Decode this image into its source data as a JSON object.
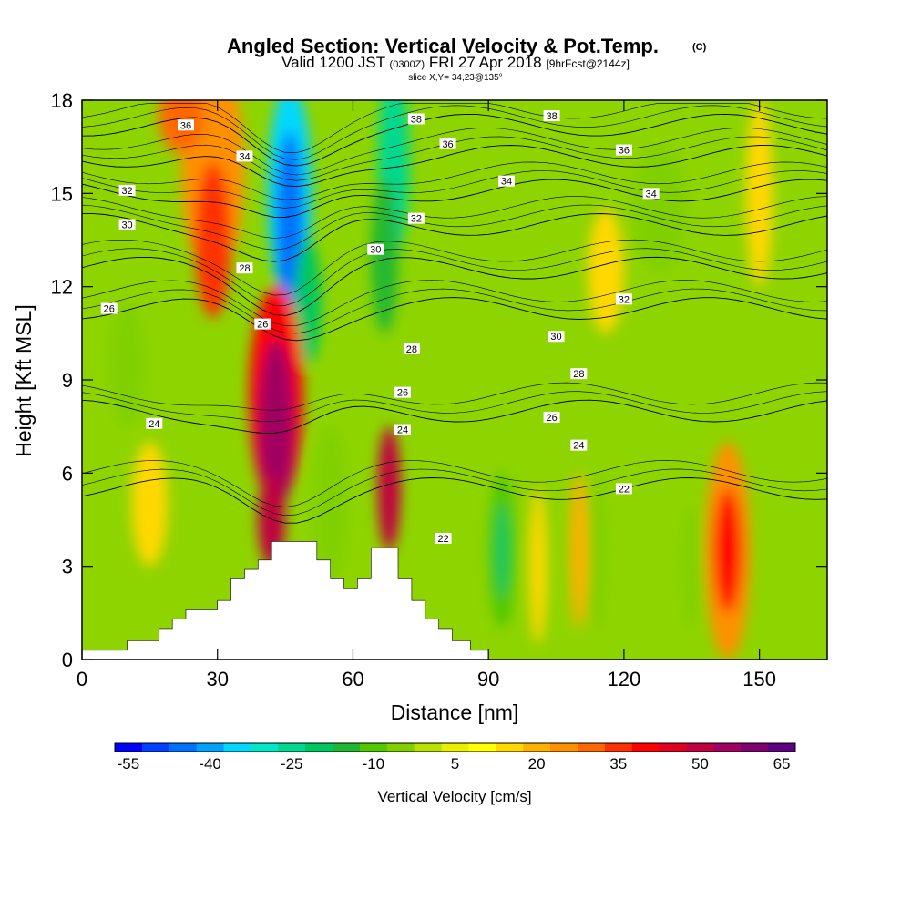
{
  "title": {
    "main": "Angled Section: Vertical Velocity & Pot.Temp.",
    "unit_tag": "(C)",
    "valid_prefix": "Valid 1200 JST",
    "utc": "(0300Z)",
    "date": "FRI 27 Apr 2018",
    "forecast": "[9hrFcst@2144z]",
    "slice": "slice X,Y= 34,23@135°"
  },
  "chart_data": {
    "type": "heatmap",
    "xlabel": "Distance [nm]",
    "ylabel": "Height [Kft MSL]",
    "xlim": [
      0,
      165
    ],
    "ylim": [
      0,
      18
    ],
    "x_ticks": [
      "0",
      "30",
      "60",
      "90",
      "120",
      "150"
    ],
    "x_tick_values": [
      0,
      30,
      60,
      90,
      120,
      150
    ],
    "y_ticks": [
      "0",
      "3",
      "6",
      "9",
      "12",
      "15",
      "18"
    ],
    "y_tick_values": [
      0,
      3,
      6,
      9,
      12,
      15,
      18
    ],
    "background_color": "#8ed400",
    "velocity_features": [
      {
        "x": 29,
        "y": 15.8,
        "rx": 7,
        "ry": 3.5,
        "value": 20
      },
      {
        "x": 29,
        "y": 13.5,
        "rx": 4,
        "ry": 2.5,
        "value": 30
      },
      {
        "x": 22,
        "y": 17.5,
        "rx": 5,
        "ry": 1.2,
        "value": 25
      },
      {
        "x": 46,
        "y": 15,
        "rx": 5,
        "ry": 3.5,
        "value": -40
      },
      {
        "x": 46,
        "y": 14,
        "rx": 3,
        "ry": 3.0,
        "value": -50
      },
      {
        "x": 50,
        "y": 11.5,
        "rx": 3,
        "ry": 2.0,
        "value": -25
      },
      {
        "x": 69,
        "y": 16,
        "rx": 3.5,
        "ry": 3.0,
        "value": -30
      },
      {
        "x": 67,
        "y": 13,
        "rx": 3,
        "ry": 2.5,
        "value": -20
      },
      {
        "x": 43,
        "y": 8.5,
        "rx": 6,
        "ry": 3.5,
        "value": 35
      },
      {
        "x": 43,
        "y": 7.5,
        "rx": 4,
        "ry": 2.8,
        "value": 50
      },
      {
        "x": 42,
        "y": 4.5,
        "rx": 3,
        "ry": 1.5,
        "value": 45
      },
      {
        "x": 68,
        "y": 5.5,
        "rx": 2.5,
        "ry": 2.0,
        "value": 45
      },
      {
        "x": 93,
        "y": 3.5,
        "rx": 3,
        "ry": 2.5,
        "value": -15
      },
      {
        "x": 93,
        "y": 3.5,
        "rx": 1.5,
        "ry": 1.5,
        "value": -25
      },
      {
        "x": 101,
        "y": 3,
        "rx": 2,
        "ry": 2.5,
        "value": 10
      },
      {
        "x": 110,
        "y": 3.5,
        "rx": 2,
        "ry": 2.5,
        "value": 15
      },
      {
        "x": 114,
        "y": 3.5,
        "rx": 2,
        "ry": 2.5,
        "value": -10
      },
      {
        "x": 135,
        "y": 3,
        "rx": 2,
        "ry": 2.0,
        "value": -10
      },
      {
        "x": 143,
        "y": 3.5,
        "rx": 5,
        "ry": 3.5,
        "value": 20
      },
      {
        "x": 143,
        "y": 3.5,
        "rx": 3,
        "ry": 2.0,
        "value": 35
      },
      {
        "x": 128,
        "y": 14.5,
        "rx": 6,
        "ry": 2.0,
        "value": -10
      },
      {
        "x": 116,
        "y": 12.5,
        "rx": 4,
        "ry": 2.0,
        "value": 10
      },
      {
        "x": 150,
        "y": 15,
        "rx": 3,
        "ry": 3.0,
        "value": 10
      },
      {
        "x": 10,
        "y": 9.5,
        "rx": 4,
        "ry": 2.0,
        "value": -10
      },
      {
        "x": 55,
        "y": 5,
        "rx": 4,
        "ry": 2.5,
        "value": -10
      },
      {
        "x": 15,
        "y": 5,
        "rx": 4,
        "ry": 2.0,
        "value": 10
      }
    ],
    "terrain": [
      [
        0,
        0.3
      ],
      [
        10,
        0.3
      ],
      [
        10,
        0.6
      ],
      [
        17,
        0.6
      ],
      [
        17,
        1.0
      ],
      [
        20,
        1.0
      ],
      [
        20,
        1.3
      ],
      [
        23,
        1.3
      ],
      [
        23,
        1.6
      ],
      [
        30,
        1.6
      ],
      [
        30,
        1.9
      ],
      [
        33,
        1.9
      ],
      [
        33,
        2.6
      ],
      [
        36,
        2.6
      ],
      [
        36,
        2.9
      ],
      [
        39,
        2.9
      ],
      [
        39,
        3.2
      ],
      [
        42,
        3.2
      ],
      [
        42,
        3.8
      ],
      [
        52,
        3.8
      ],
      [
        52,
        3.2
      ],
      [
        55,
        3.2
      ],
      [
        55,
        2.6
      ],
      [
        58,
        2.6
      ],
      [
        58,
        2.3
      ],
      [
        61,
        2.3
      ],
      [
        61,
        2.6
      ],
      [
        64,
        2.6
      ],
      [
        64,
        3.6
      ],
      [
        70,
        3.6
      ],
      [
        70,
        2.6
      ],
      [
        73,
        2.6
      ],
      [
        73,
        1.9
      ],
      [
        76,
        1.9
      ],
      [
        76,
        1.3
      ],
      [
        79,
        1.3
      ],
      [
        79,
        1.0
      ],
      [
        82,
        1.0
      ],
      [
        82,
        0.6
      ],
      [
        86,
        0.6
      ],
      [
        86,
        0.3
      ],
      [
        90,
        0.3
      ],
      [
        90,
        0
      ]
    ],
    "theta_contours": [
      {
        "value": 36,
        "label": "36",
        "y0": 17.2,
        "label_x": 23
      },
      {
        "value": 34,
        "label": "34",
        "y0": 16.2,
        "label_x": 36
      },
      {
        "value": 32,
        "label": "32",
        "y0": 15.1,
        "label_x": 10
      },
      {
        "value": 30,
        "label": "30",
        "y0": 14.0,
        "label_x": 10
      },
      {
        "value": 28,
        "label": "28",
        "y0": 12.6,
        "label_x": 36
      },
      {
        "value": 26,
        "label": "26",
        "y0": 11.3,
        "label_x": 6
      },
      {
        "value": 24,
        "label": "24",
        "y0": 8.0,
        "label_x": 16
      },
      {
        "value": 22,
        "label": "22",
        "y0": 5.5,
        "label_x": 80
      }
    ],
    "contour_labels": [
      {
        "text": "36",
        "x": 23,
        "y": 17.2
      },
      {
        "text": "34",
        "x": 36,
        "y": 16.2
      },
      {
        "text": "32",
        "x": 10,
        "y": 15.1
      },
      {
        "text": "30",
        "x": 10,
        "y": 14.0
      },
      {
        "text": "28",
        "x": 36,
        "y": 12.6
      },
      {
        "text": "26",
        "x": 6,
        "y": 11.3
      },
      {
        "text": "26",
        "x": 40,
        "y": 10.8
      },
      {
        "text": "24",
        "x": 16,
        "y": 7.6
      },
      {
        "text": "38",
        "x": 74,
        "y": 17.4
      },
      {
        "text": "38",
        "x": 104,
        "y": 17.5
      },
      {
        "text": "36",
        "x": 81,
        "y": 16.6
      },
      {
        "text": "36",
        "x": 120,
        "y": 16.4
      },
      {
        "text": "34",
        "x": 94,
        "y": 15.4
      },
      {
        "text": "34",
        "x": 126,
        "y": 15.0
      },
      {
        "text": "32",
        "x": 74,
        "y": 14.2
      },
      {
        "text": "32",
        "x": 120,
        "y": 11.6
      },
      {
        "text": "30",
        "x": 65,
        "y": 13.2
      },
      {
        "text": "30",
        "x": 105,
        "y": 10.4
      },
      {
        "text": "28",
        "x": 73,
        "y": 10.0
      },
      {
        "text": "28",
        "x": 110,
        "y": 9.2
      },
      {
        "text": "26",
        "x": 71,
        "y": 8.6
      },
      {
        "text": "26",
        "x": 104,
        "y": 7.8
      },
      {
        "text": "24",
        "x": 71,
        "y": 7.4
      },
      {
        "text": "24",
        "x": 110,
        "y": 6.9
      },
      {
        "text": "22",
        "x": 80,
        "y": 3.9
      },
      {
        "text": "22",
        "x": 120,
        "y": 5.5
      }
    ]
  },
  "colorbar": {
    "label": "Vertical Velocity [cm/s]",
    "tick_labels": [
      "-55",
      "-40",
      "-25",
      "-10",
      "5",
      "20",
      "35",
      "50",
      "65"
    ],
    "colors": [
      "#0000ff",
      "#0040ff",
      "#0070ff",
      "#00a0ff",
      "#00d8ff",
      "#00e8c8",
      "#00d890",
      "#00c860",
      "#20b830",
      "#50c800",
      "#80d000",
      "#b8e000",
      "#e8f000",
      "#ffff00",
      "#ffd800",
      "#ffb000",
      "#ff9000",
      "#ff6800",
      "#ff3000",
      "#ff0000",
      "#e00020",
      "#c00040",
      "#a00060",
      "#800070",
      "#600080"
    ]
  }
}
